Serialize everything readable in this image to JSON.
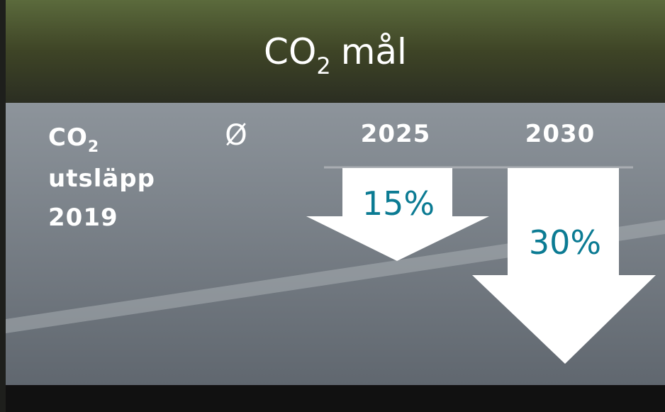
{
  "title": {
    "base": "CO",
    "subscript": "2",
    "suffix": "mål"
  },
  "row_label": {
    "base": "CO",
    "subscript": "2",
    "line2": "utsläpp",
    "line3": "2019"
  },
  "columns": [
    {
      "header": "Ø"
    },
    {
      "header": "2025",
      "reduction": "15%"
    },
    {
      "header": "2030",
      "reduction": "30%"
    }
  ]
}
